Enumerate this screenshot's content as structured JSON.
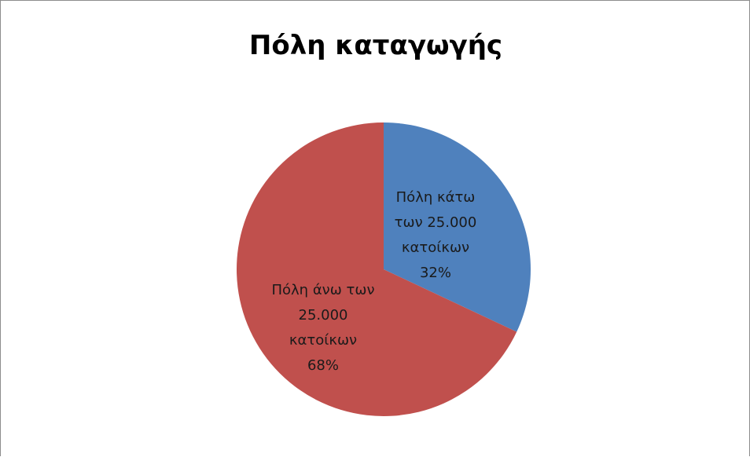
{
  "chart_data": {
    "type": "pie",
    "title": "Πόλη καταγωγής",
    "slices": [
      {
        "name": "Πόλη κάτω των 25.000 κατοίκων",
        "value": 32,
        "color": "#4f81bd",
        "label_lines": [
          "Πόλη κάτω",
          "των 25.000",
          "κατοίκων",
          "32%"
        ]
      },
      {
        "name": "Πόλη άνω των 25.000 κατοίκων",
        "value": 68,
        "color": "#c0504d",
        "label_lines": [
          "Πόλη άνω των",
          "25.000",
          "κατοίκων",
          "68%"
        ]
      }
    ]
  }
}
